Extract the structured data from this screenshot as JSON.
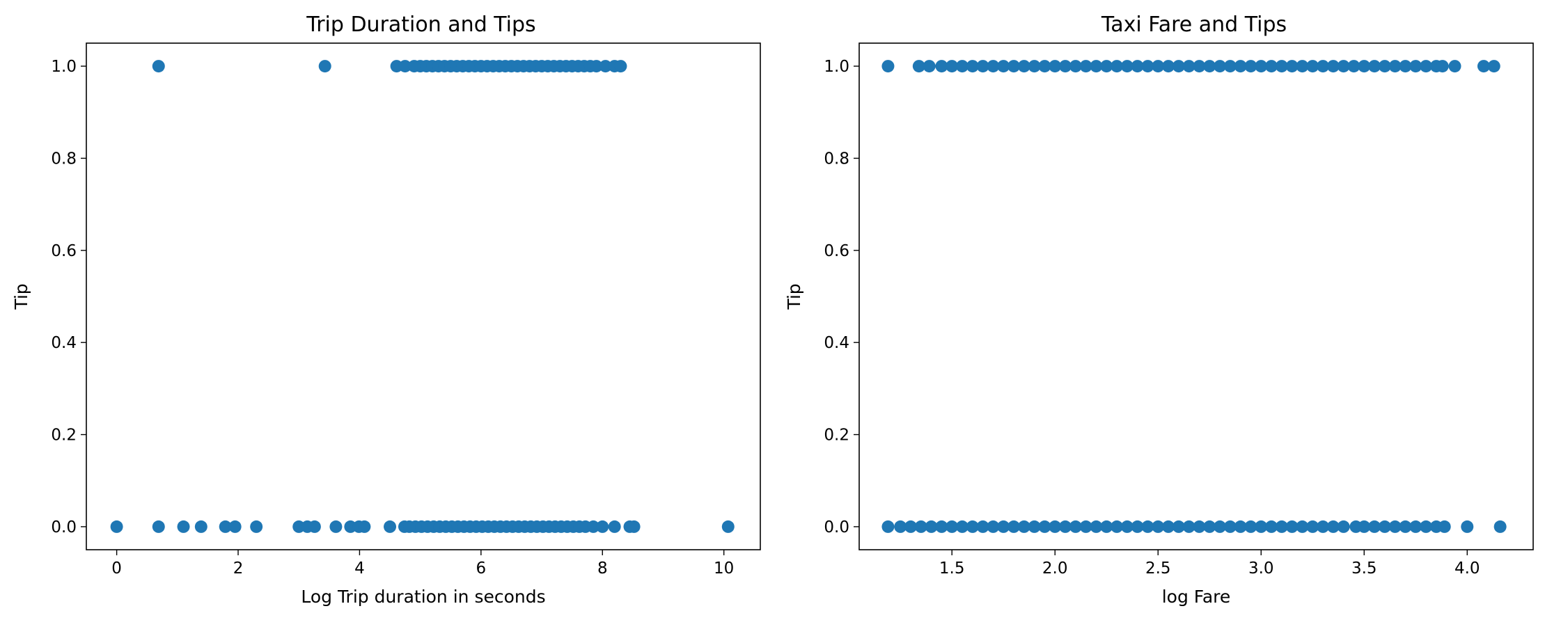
{
  "chart_data": [
    {
      "type": "scatter",
      "title": "Trip Duration and Tips",
      "xlabel": "Log Trip duration in seconds",
      "ylabel": "Tip",
      "xlim": [
        -0.5,
        10.6
      ],
      "ylim": [
        -0.05,
        1.05
      ],
      "xticks": [
        "0",
        "2",
        "4",
        "6",
        "8",
        "10"
      ],
      "xtick_values": [
        0,
        2,
        4,
        6,
        8,
        10
      ],
      "yticks": [
        "0.0",
        "0.2",
        "0.4",
        "0.6",
        "0.8",
        "1.0"
      ],
      "ytick_values": [
        0.0,
        0.2,
        0.4,
        0.6,
        0.8,
        1.0
      ],
      "grid": false,
      "color": "#1f77b4",
      "points": [
        {
          "x": 0.69,
          "y": 1
        },
        {
          "x": 3.43,
          "y": 1
        },
        {
          "x": 4.61,
          "y": 1
        },
        {
          "x": 4.75,
          "y": 1
        },
        {
          "x": 4.9,
          "y": 1
        },
        {
          "x": 5.0,
          "y": 1
        },
        {
          "x": 5.1,
          "y": 1
        },
        {
          "x": 5.2,
          "y": 1
        },
        {
          "x": 5.3,
          "y": 1
        },
        {
          "x": 5.4,
          "y": 1
        },
        {
          "x": 5.5,
          "y": 1
        },
        {
          "x": 5.6,
          "y": 1
        },
        {
          "x": 5.7,
          "y": 1
        },
        {
          "x": 5.8,
          "y": 1
        },
        {
          "x": 5.9,
          "y": 1
        },
        {
          "x": 6.0,
          "y": 1
        },
        {
          "x": 6.1,
          "y": 1
        },
        {
          "x": 6.2,
          "y": 1
        },
        {
          "x": 6.3,
          "y": 1
        },
        {
          "x": 6.4,
          "y": 1
        },
        {
          "x": 6.5,
          "y": 1
        },
        {
          "x": 6.6,
          "y": 1
        },
        {
          "x": 6.7,
          "y": 1
        },
        {
          "x": 6.8,
          "y": 1
        },
        {
          "x": 6.9,
          "y": 1
        },
        {
          "x": 7.0,
          "y": 1
        },
        {
          "x": 7.1,
          "y": 1
        },
        {
          "x": 7.2,
          "y": 1
        },
        {
          "x": 7.3,
          "y": 1
        },
        {
          "x": 7.4,
          "y": 1
        },
        {
          "x": 7.5,
          "y": 1
        },
        {
          "x": 7.6,
          "y": 1
        },
        {
          "x": 7.7,
          "y": 1
        },
        {
          "x": 7.8,
          "y": 1
        },
        {
          "x": 7.9,
          "y": 1
        },
        {
          "x": 8.05,
          "y": 1
        },
        {
          "x": 8.2,
          "y": 1
        },
        {
          "x": 8.3,
          "y": 1
        },
        {
          "x": 0.0,
          "y": 0
        },
        {
          "x": 0.69,
          "y": 0
        },
        {
          "x": 1.1,
          "y": 0
        },
        {
          "x": 1.39,
          "y": 0
        },
        {
          "x": 1.79,
          "y": 0
        },
        {
          "x": 1.95,
          "y": 0
        },
        {
          "x": 2.3,
          "y": 0
        },
        {
          "x": 3.0,
          "y": 0
        },
        {
          "x": 3.14,
          "y": 0
        },
        {
          "x": 3.26,
          "y": 0
        },
        {
          "x": 3.61,
          "y": 0
        },
        {
          "x": 3.85,
          "y": 0
        },
        {
          "x": 3.99,
          "y": 0
        },
        {
          "x": 4.08,
          "y": 0
        },
        {
          "x": 4.5,
          "y": 0
        },
        {
          "x": 4.74,
          "y": 0
        },
        {
          "x": 4.82,
          "y": 0
        },
        {
          "x": 4.92,
          "y": 0
        },
        {
          "x": 5.02,
          "y": 0
        },
        {
          "x": 5.12,
          "y": 0
        },
        {
          "x": 5.22,
          "y": 0
        },
        {
          "x": 5.32,
          "y": 0
        },
        {
          "x": 5.42,
          "y": 0
        },
        {
          "x": 5.52,
          "y": 0
        },
        {
          "x": 5.62,
          "y": 0
        },
        {
          "x": 5.72,
          "y": 0
        },
        {
          "x": 5.82,
          "y": 0
        },
        {
          "x": 5.92,
          "y": 0
        },
        {
          "x": 6.02,
          "y": 0
        },
        {
          "x": 6.12,
          "y": 0
        },
        {
          "x": 6.22,
          "y": 0
        },
        {
          "x": 6.32,
          "y": 0
        },
        {
          "x": 6.42,
          "y": 0
        },
        {
          "x": 6.52,
          "y": 0
        },
        {
          "x": 6.62,
          "y": 0
        },
        {
          "x": 6.72,
          "y": 0
        },
        {
          "x": 6.82,
          "y": 0
        },
        {
          "x": 6.92,
          "y": 0
        },
        {
          "x": 7.02,
          "y": 0
        },
        {
          "x": 7.12,
          "y": 0
        },
        {
          "x": 7.22,
          "y": 0
        },
        {
          "x": 7.32,
          "y": 0
        },
        {
          "x": 7.42,
          "y": 0
        },
        {
          "x": 7.52,
          "y": 0
        },
        {
          "x": 7.62,
          "y": 0
        },
        {
          "x": 7.72,
          "y": 0
        },
        {
          "x": 7.85,
          "y": 0
        },
        {
          "x": 8.0,
          "y": 0
        },
        {
          "x": 8.2,
          "y": 0
        },
        {
          "x": 8.45,
          "y": 0
        },
        {
          "x": 8.52,
          "y": 0
        },
        {
          "x": 10.07,
          "y": 0
        }
      ]
    },
    {
      "type": "scatter",
      "title": "Taxi Fare and Tips",
      "xlabel": "log Fare",
      "ylabel": "Tip",
      "xlim": [
        1.05,
        4.32
      ],
      "ylim": [
        -0.05,
        1.05
      ],
      "xticks": [
        "1.5",
        "2.0",
        "2.5",
        "3.0",
        "3.5",
        "4.0"
      ],
      "xtick_values": [
        1.5,
        2.0,
        2.5,
        3.0,
        3.5,
        4.0
      ],
      "yticks": [
        "0.0",
        "0.2",
        "0.4",
        "0.6",
        "0.8",
        "1.0"
      ],
      "ytick_values": [
        0.0,
        0.2,
        0.4,
        0.6,
        0.8,
        1.0
      ],
      "grid": false,
      "color": "#1f77b4",
      "points": [
        {
          "x": 1.19,
          "y": 1
        },
        {
          "x": 1.34,
          "y": 1
        },
        {
          "x": 1.39,
          "y": 1
        },
        {
          "x": 1.45,
          "y": 1
        },
        {
          "x": 1.5,
          "y": 1
        },
        {
          "x": 1.55,
          "y": 1
        },
        {
          "x": 1.6,
          "y": 1
        },
        {
          "x": 1.65,
          "y": 1
        },
        {
          "x": 1.7,
          "y": 1
        },
        {
          "x": 1.75,
          "y": 1
        },
        {
          "x": 1.8,
          "y": 1
        },
        {
          "x": 1.85,
          "y": 1
        },
        {
          "x": 1.9,
          "y": 1
        },
        {
          "x": 1.95,
          "y": 1
        },
        {
          "x": 2.0,
          "y": 1
        },
        {
          "x": 2.05,
          "y": 1
        },
        {
          "x": 2.1,
          "y": 1
        },
        {
          "x": 2.15,
          "y": 1
        },
        {
          "x": 2.2,
          "y": 1
        },
        {
          "x": 2.25,
          "y": 1
        },
        {
          "x": 2.3,
          "y": 1
        },
        {
          "x": 2.35,
          "y": 1
        },
        {
          "x": 2.4,
          "y": 1
        },
        {
          "x": 2.45,
          "y": 1
        },
        {
          "x": 2.5,
          "y": 1
        },
        {
          "x": 2.55,
          "y": 1
        },
        {
          "x": 2.6,
          "y": 1
        },
        {
          "x": 2.65,
          "y": 1
        },
        {
          "x": 2.7,
          "y": 1
        },
        {
          "x": 2.75,
          "y": 1
        },
        {
          "x": 2.8,
          "y": 1
        },
        {
          "x": 2.85,
          "y": 1
        },
        {
          "x": 2.9,
          "y": 1
        },
        {
          "x": 2.95,
          "y": 1
        },
        {
          "x": 3.0,
          "y": 1
        },
        {
          "x": 3.05,
          "y": 1
        },
        {
          "x": 3.1,
          "y": 1
        },
        {
          "x": 3.15,
          "y": 1
        },
        {
          "x": 3.2,
          "y": 1
        },
        {
          "x": 3.25,
          "y": 1
        },
        {
          "x": 3.3,
          "y": 1
        },
        {
          "x": 3.35,
          "y": 1
        },
        {
          "x": 3.4,
          "y": 1
        },
        {
          "x": 3.45,
          "y": 1
        },
        {
          "x": 3.5,
          "y": 1
        },
        {
          "x": 3.55,
          "y": 1
        },
        {
          "x": 3.6,
          "y": 1
        },
        {
          "x": 3.65,
          "y": 1
        },
        {
          "x": 3.7,
          "y": 1
        },
        {
          "x": 3.75,
          "y": 1
        },
        {
          "x": 3.8,
          "y": 1
        },
        {
          "x": 3.85,
          "y": 1
        },
        {
          "x": 3.88,
          "y": 1
        },
        {
          "x": 3.94,
          "y": 1
        },
        {
          "x": 4.08,
          "y": 1
        },
        {
          "x": 4.13,
          "y": 1
        },
        {
          "x": 1.19,
          "y": 0
        },
        {
          "x": 1.25,
          "y": 0
        },
        {
          "x": 1.3,
          "y": 0
        },
        {
          "x": 1.35,
          "y": 0
        },
        {
          "x": 1.4,
          "y": 0
        },
        {
          "x": 1.45,
          "y": 0
        },
        {
          "x": 1.5,
          "y": 0
        },
        {
          "x": 1.55,
          "y": 0
        },
        {
          "x": 1.6,
          "y": 0
        },
        {
          "x": 1.65,
          "y": 0
        },
        {
          "x": 1.7,
          "y": 0
        },
        {
          "x": 1.75,
          "y": 0
        },
        {
          "x": 1.8,
          "y": 0
        },
        {
          "x": 1.85,
          "y": 0
        },
        {
          "x": 1.9,
          "y": 0
        },
        {
          "x": 1.95,
          "y": 0
        },
        {
          "x": 2.0,
          "y": 0
        },
        {
          "x": 2.05,
          "y": 0
        },
        {
          "x": 2.1,
          "y": 0
        },
        {
          "x": 2.15,
          "y": 0
        },
        {
          "x": 2.2,
          "y": 0
        },
        {
          "x": 2.25,
          "y": 0
        },
        {
          "x": 2.3,
          "y": 0
        },
        {
          "x": 2.35,
          "y": 0
        },
        {
          "x": 2.4,
          "y": 0
        },
        {
          "x": 2.45,
          "y": 0
        },
        {
          "x": 2.5,
          "y": 0
        },
        {
          "x": 2.55,
          "y": 0
        },
        {
          "x": 2.6,
          "y": 0
        },
        {
          "x": 2.65,
          "y": 0
        },
        {
          "x": 2.7,
          "y": 0
        },
        {
          "x": 2.75,
          "y": 0
        },
        {
          "x": 2.8,
          "y": 0
        },
        {
          "x": 2.85,
          "y": 0
        },
        {
          "x": 2.9,
          "y": 0
        },
        {
          "x": 2.95,
          "y": 0
        },
        {
          "x": 3.0,
          "y": 0
        },
        {
          "x": 3.05,
          "y": 0
        },
        {
          "x": 3.1,
          "y": 0
        },
        {
          "x": 3.15,
          "y": 0
        },
        {
          "x": 3.2,
          "y": 0
        },
        {
          "x": 3.25,
          "y": 0
        },
        {
          "x": 3.3,
          "y": 0
        },
        {
          "x": 3.35,
          "y": 0
        },
        {
          "x": 3.4,
          "y": 0
        },
        {
          "x": 3.46,
          "y": 0
        },
        {
          "x": 3.5,
          "y": 0
        },
        {
          "x": 3.55,
          "y": 0
        },
        {
          "x": 3.6,
          "y": 0
        },
        {
          "x": 3.65,
          "y": 0
        },
        {
          "x": 3.7,
          "y": 0
        },
        {
          "x": 3.75,
          "y": 0
        },
        {
          "x": 3.8,
          "y": 0
        },
        {
          "x": 3.85,
          "y": 0
        },
        {
          "x": 3.89,
          "y": 0
        },
        {
          "x": 4.0,
          "y": 0
        },
        {
          "x": 4.16,
          "y": 0
        }
      ]
    }
  ]
}
